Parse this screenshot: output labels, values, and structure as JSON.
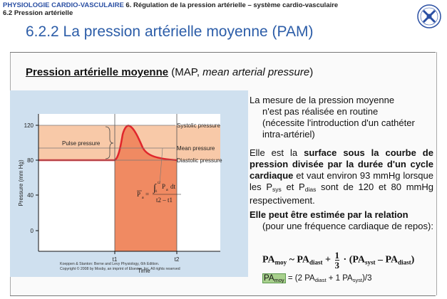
{
  "header": {
    "line1_section": "PHYSIOLOGIE CARDIO-VASCULAIRE",
    "line1_rest": "6. Régulation de la pression artérielle – système cardio-vasculaire",
    "line2": "6.2 Pression artérielle"
  },
  "logo": {
    "icon": "university-crest-icon"
  },
  "title": "6.2.2 La pression artérielle moyenne (PAM)",
  "subtitle": {
    "strong": "Pression artérielle moyenne",
    "plain_open": " (MAP, ",
    "italic": "mean arterial pressure",
    "plain_close": ")"
  },
  "figure": {
    "ylabel": "Pressure (mm Hg)",
    "xlabel": "Time",
    "yticks": [
      "120",
      "80",
      "40",
      "0"
    ],
    "xticks": [
      "t1",
      "t2"
    ],
    "labels": {
      "systolic": "Systolic pressure",
      "mean": "Mean pressure",
      "diastolic": "Diastolic pressure",
      "pulse": "Pulse pressure"
    },
    "equation": {
      "lhs": "P",
      "lhs_sub": "a",
      "int_lower": "t1",
      "int_upper": "t2",
      "integrand": "P",
      "integrand_sub": "a",
      "dt": "dt",
      "denominator": "t2 – t1"
    },
    "credit_line1": "Koeppen & Stanton: Berne and Levy Physiology, 6th Edition.",
    "credit_line2": "Copyright © 2008 by Mosby, an imprint of Elsevier, Inc. All rights reserved"
  },
  "para1": {
    "l1": "La mesure de la pression moyenne",
    "l2": "n'est pas réalisée en routine",
    "l3": "(nécessite l'introduction d'un cathéter",
    "l4": "intra-artériel)"
  },
  "para2": {
    "pre": "Elle est la ",
    "bold": "surface sous la courbe de pression divisée par la durée d'un cycle cardiaque",
    "mid": " et vaut environ 93 mmHg lorsque les P",
    "sub1": "sys",
    "mid2": " et P",
    "sub2": "dias",
    "post": " sont de 120 et 80 mmHg respectivement."
  },
  "para3": {
    "bold": "Elle peut être estimée par la relation",
    "rest": "(pour une fréquence cardiaque de repos):"
  },
  "formula1": {
    "pa": "PA",
    "moy": "moy",
    "approx": " ~ ",
    "diast": "diast",
    "plus": " + ",
    "num": "1",
    "den": "3",
    "dot": " · (",
    "syst": "syst",
    "minus": " – ",
    "close": ")"
  },
  "formula2": {
    "pa": "PA",
    "moy": "moy",
    "rest1": " = (2 PA",
    "diast": "diast",
    "rest2": " + 1 PA",
    "syst": "syst",
    "rest3": ")/3"
  },
  "colors": {
    "accent": "#2c5da8",
    "figure_bg": "#cfe0ef",
    "pulse_band": "#f8c9a8",
    "area_fill": "#f08a62",
    "curve": "#e0262c",
    "highlight": "#a8d08d"
  }
}
